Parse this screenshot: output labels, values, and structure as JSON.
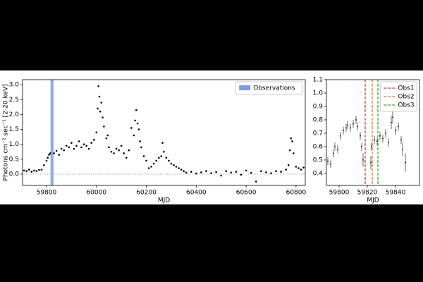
{
  "chart_data": [
    {
      "type": "scatter",
      "xlabel": "MJD",
      "ylabel": "Photons cm⁻² sec⁻¹ [2-20 keV]",
      "color": "#000000",
      "x": [
        59710,
        59720,
        59730,
        59740,
        59750,
        59760,
        59770,
        59780,
        59790,
        59800,
        59805,
        59810,
        59815,
        59830,
        59840,
        59850,
        59860,
        59870,
        59880,
        59890,
        59900,
        59910,
        59920,
        59930,
        59940,
        59950,
        59960,
        59970,
        59980,
        59990,
        60000,
        60005,
        60008,
        60012,
        60015,
        60020,
        60025,
        60030,
        60040,
        60045,
        60050,
        60060,
        60070,
        60080,
        60090,
        60100,
        60110,
        60120,
        60130,
        60140,
        60150,
        60155,
        60160,
        60165,
        60170,
        60175,
        60180,
        60190,
        60200,
        60210,
        60220,
        60230,
        60240,
        60250,
        60260,
        60265,
        60270,
        60280,
        60290,
        60300,
        60310,
        60320,
        60330,
        60340,
        60350,
        60360,
        60380,
        60400,
        60420,
        60440,
        60460,
        60480,
        60500,
        60520,
        60540,
        60560,
        60580,
        60600,
        60620,
        60640,
        60660,
        60680,
        60700,
        60720,
        60740,
        60760,
        60770,
        60775,
        60780,
        60785,
        60790,
        60800,
        60810,
        60820,
        60830
      ],
      "values": [
        0.12,
        0.1,
        0.15,
        0.08,
        0.12,
        0.1,
        0.14,
        0.15,
        0.3,
        0.45,
        0.55,
        0.65,
        0.7,
        0.7,
        0.78,
        0.65,
        0.85,
        0.8,
        0.95,
        0.9,
        1.05,
        0.85,
        0.95,
        1.1,
        0.9,
        1.0,
        0.95,
        0.85,
        1.05,
        1.15,
        1.4,
        2.2,
        2.95,
        2.6,
        2.1,
        2.4,
        1.9,
        1.6,
        1.2,
        1.3,
        0.9,
        0.75,
        0.7,
        0.85,
        0.8,
        0.95,
        0.7,
        0.55,
        0.8,
        1.55,
        1.3,
        1.8,
        2.15,
        1.7,
        1.5,
        1.1,
        0.9,
        0.6,
        0.45,
        0.2,
        0.25,
        0.35,
        0.45,
        0.55,
        0.6,
        1.05,
        0.75,
        0.55,
        0.45,
        0.35,
        0.3,
        0.25,
        0.2,
        0.15,
        0.1,
        0.05,
        0.08,
        0.02,
        0.06,
        0.1,
        0.03,
        0.07,
        -0.05,
        0.1,
        0.05,
        0.08,
        -0.02,
        0.12,
        0.04,
        -0.25,
        0.1,
        0.06,
        0.03,
        0.1,
        0.08,
        0.15,
        0.3,
        0.8,
        1.2,
        1.1,
        0.7,
        0.25,
        0.2,
        0.15,
        0.22
      ],
      "xlim": [
        59704,
        60837
      ],
      "ylim": [
        -0.38,
        3.17
      ],
      "xticks": [
        59800,
        60000,
        60200,
        60400,
        60600,
        60800
      ],
      "yticks": [
        {
          "value": 0,
          "label": "0.0"
        },
        0.5,
        {
          "value": 1,
          "label": "1.0"
        },
        1.5,
        {
          "value": 2,
          "label": "2.0"
        },
        2.5,
        {
          "value": 3,
          "label": "3.0"
        }
      ],
      "hline": 0,
      "spans": [
        {
          "name": "Observations",
          "color": "#7b9ce6",
          "x": [
            59816,
            59828
          ]
        }
      ],
      "legend": "upper right"
    },
    {
      "type": "errorbar",
      "xlabel": "MJD",
      "color": "#000000",
      "x": [
        59792,
        59794,
        59796,
        59797,
        59799,
        59801,
        59803,
        59805,
        59806,
        59808,
        59810,
        59812,
        59813,
        59815,
        59816,
        59817,
        59822.5,
        59823,
        59825,
        59827,
        59829,
        59831,
        59833,
        59835,
        59837,
        59838,
        59840,
        59842,
        59844,
        59845,
        59847
      ],
      "values": [
        0.49,
        0.47,
        0.55,
        0.6,
        0.58,
        0.68,
        0.72,
        0.74,
        0.76,
        0.74,
        0.77,
        0.8,
        0.75,
        0.68,
        0.6,
        0.5,
        0.48,
        0.6,
        0.65,
        0.64,
        0.68,
        0.66,
        0.7,
        0.63,
        0.78,
        0.82,
        0.72,
        0.75,
        0.65,
        0.58,
        0.48
      ],
      "errors": [
        0.03,
        0.03,
        0.03,
        0.03,
        0.03,
        0.03,
        0.03,
        0.03,
        0.03,
        0.03,
        0.03,
        0.03,
        0.03,
        0.03,
        0.03,
        0.05,
        0.05,
        0.03,
        0.03,
        0.03,
        0.03,
        0.03,
        0.03,
        0.03,
        0.05,
        0.05,
        0.03,
        0.03,
        0.03,
        0.05,
        0.07
      ],
      "xlim": [
        59791,
        59857
      ],
      "ylim": [
        0.31,
        1.1
      ],
      "xticks": [
        59800,
        59820,
        59840
      ],
      "yticks": [
        0.4,
        0.5,
        0.6,
        0.7,
        0.8,
        0.9,
        {
          "value": 1,
          "label": "1.0"
        },
        1.1
      ],
      "vlines": [
        {
          "name": "Obs1",
          "color": "#d62728",
          "x": 59818.5
        },
        {
          "name": "Obs2",
          "color": "#c8743a",
          "x": 59823.5
        },
        {
          "name": "Obs3",
          "color": "#2ca02c",
          "x": 59827.5
        }
      ],
      "legend": "upper right"
    }
  ]
}
